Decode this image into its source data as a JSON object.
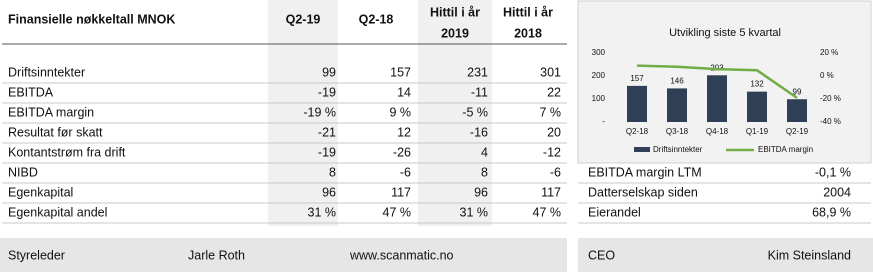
{
  "table": {
    "title": "Finansielle nøkkeltall MNOK",
    "columns": [
      [
        "Q2-19"
      ],
      [
        "Q2-18"
      ],
      [
        "Hittil i år",
        "2019"
      ],
      [
        "Hittil i år",
        "2018"
      ]
    ],
    "rows": [
      [
        "Driftsinntekter",
        "99",
        "157",
        "231",
        "301"
      ],
      [
        "EBITDA",
        "-19",
        "14",
        "-11",
        "22"
      ],
      [
        "EBITDA margin",
        "-19 %",
        "9 %",
        "-5 %",
        "7 %"
      ],
      [
        "Resultat før skatt",
        "-21",
        "12",
        "-16",
        "20"
      ],
      [
        "Kontantstrøm fra drift",
        "-19",
        "-26",
        "4",
        "-12"
      ],
      [
        "NIBD",
        "8",
        "-6",
        "8",
        "-6"
      ],
      [
        "Egenkapital",
        "96",
        "117",
        "96",
        "117"
      ],
      [
        "Egenkapital andel",
        "31 %",
        "47 %",
        "31 %",
        "47 %"
      ]
    ]
  },
  "chart_data": {
    "type": "bar",
    "title": "Utvikling siste 5 kvartal",
    "categories": [
      "Q2-18",
      "Q3-18",
      "Q4-18",
      "Q1-19",
      "Q2-19"
    ],
    "series": [
      {
        "name": "Driftsinntekter",
        "type": "bar",
        "color": "#2f3f55",
        "values": [
          157,
          146,
          203,
          132,
          99
        ]
      },
      {
        "name": "EBITDA margin",
        "type": "line",
        "axis": "y2",
        "color": "#70ad47",
        "values": [
          9,
          8,
          6,
          5,
          -19
        ]
      }
    ],
    "ylim": [
      0,
      300
    ],
    "yticks": [
      {
        "value": 0,
        "label": "-"
      },
      100,
      200,
      300
    ],
    "y2lim": [
      -40,
      20
    ],
    "y2ticks": [
      {
        "value": -40,
        "label": "-40 %"
      },
      {
        "value": -20,
        "label": "-20 %"
      },
      {
        "value": 0,
        "label": "0 %"
      },
      {
        "value": 20,
        "label": "20 %"
      }
    ]
  },
  "info": [
    [
      "EBITDA margin LTM",
      "-0,1 %"
    ],
    [
      "Datterselskap siden",
      "2004"
    ],
    [
      "Eierandel",
      "68,9 %"
    ]
  ],
  "footer": {
    "left": [
      "Styreleder",
      "Jarle Roth",
      "www.scanmatic.no"
    ],
    "right": [
      "CEO",
      "Kim Steinsland"
    ]
  }
}
